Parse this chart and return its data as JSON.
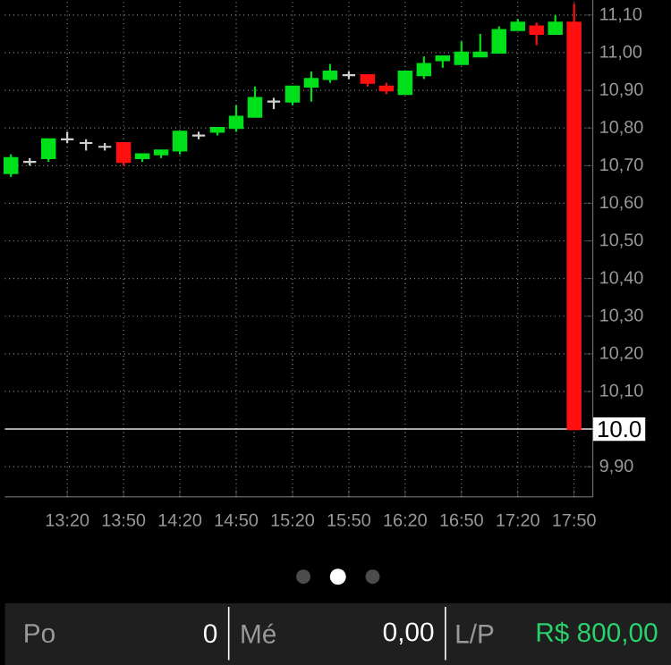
{
  "chart_data": {
    "type": "candlestick",
    "x": [
      12.8333,
      13.0,
      13.1667,
      13.3333,
      13.5,
      13.6667,
      13.8333,
      14.0,
      14.1667,
      14.3333,
      14.5,
      14.6667,
      14.8333,
      15.0,
      15.1667,
      15.3333,
      15.5,
      15.6667,
      15.8333,
      16.0,
      16.1667,
      16.3333,
      16.5,
      16.6667,
      16.8333,
      17.0,
      17.1667,
      17.3333,
      17.5,
      17.6667,
      17.8333
    ],
    "ohlc": [
      [
        10.68,
        10.73,
        10.67,
        10.72
      ],
      [
        10.71,
        10.72,
        10.7,
        10.71
      ],
      [
        10.72,
        10.77,
        10.71,
        10.77
      ],
      [
        10.77,
        10.79,
        10.76,
        10.77
      ],
      [
        10.76,
        10.77,
        10.74,
        10.76
      ],
      [
        10.75,
        10.76,
        10.74,
        10.75
      ],
      [
        10.76,
        10.76,
        10.7,
        10.71
      ],
      [
        10.72,
        10.73,
        10.71,
        10.73
      ],
      [
        10.73,
        10.74,
        10.72,
        10.74
      ],
      [
        10.74,
        10.79,
        10.73,
        10.79
      ],
      [
        10.78,
        10.79,
        10.77,
        10.78
      ],
      [
        10.79,
        10.8,
        10.78,
        10.8
      ],
      [
        10.8,
        10.86,
        10.79,
        10.83
      ],
      [
        10.83,
        10.91,
        10.83,
        10.88
      ],
      [
        10.87,
        10.88,
        10.85,
        10.87
      ],
      [
        10.87,
        10.91,
        10.86,
        10.91
      ],
      [
        10.91,
        10.95,
        10.87,
        10.93
      ],
      [
        10.93,
        10.97,
        10.92,
        10.95
      ],
      [
        10.94,
        10.95,
        10.93,
        10.94
      ],
      [
        10.94,
        10.94,
        10.91,
        10.92
      ],
      [
        10.91,
        10.92,
        10.89,
        10.9
      ],
      [
        10.89,
        10.95,
        10.89,
        10.95
      ],
      [
        10.94,
        10.99,
        10.93,
        10.97
      ],
      [
        10.98,
        10.99,
        10.96,
        10.99
      ],
      [
        10.97,
        11.03,
        10.97,
        11.0
      ],
      [
        10.99,
        11.05,
        10.99,
        11.0
      ],
      [
        11.0,
        11.07,
        11.0,
        11.06
      ],
      [
        11.06,
        11.09,
        11.06,
        11.08
      ],
      [
        11.07,
        11.08,
        11.02,
        11.05
      ],
      [
        11.05,
        11.1,
        11.05,
        11.08
      ],
      [
        11.08,
        11.13,
        10.0,
        10.0
      ]
    ],
    "colors": [
      "#00e01a",
      "#d0d0d0",
      "#00e01a",
      "#d0d0d0",
      "#d0d0d0",
      "#d0d0d0",
      "#ff1010",
      "#00e01a",
      "#00e01a",
      "#00e01a",
      "#d0d0d0",
      "#00e01a",
      "#00e01a",
      "#00e01a",
      "#d0d0d0",
      "#00e01a",
      "#00e01a",
      "#00e01a",
      "#d0d0d0",
      "#ff1010",
      "#ff1010",
      "#00e01a",
      "#00e01a",
      "#00e01a",
      "#00e01a",
      "#00e01a",
      "#00e01a",
      "#00e01a",
      "#ff1010",
      "#00e01a",
      "#ff1010"
    ],
    "xlim": [
      12.78,
      18.0
    ],
    "xticks": [
      {
        "value": 13.3333,
        "label": "13:20"
      },
      {
        "value": 13.8333,
        "label": "13:50"
      },
      {
        "value": 14.3333,
        "label": "14:20"
      },
      {
        "value": 14.8333,
        "label": "14:50"
      },
      {
        "value": 15.3333,
        "label": "15:20"
      },
      {
        "value": 15.8333,
        "label": "15:50"
      },
      {
        "value": 16.3333,
        "label": "16:20"
      },
      {
        "value": 16.8333,
        "label": "16:50"
      },
      {
        "value": 17.3333,
        "label": "17:20"
      },
      {
        "value": 17.8333,
        "label": "17:50"
      }
    ],
    "ylim": [
      9.82,
      11.14
    ],
    "yticks": [
      {
        "value": 9.9,
        "label": "9,90"
      },
      {
        "value": 10.1,
        "label": "10,10"
      },
      {
        "value": 10.2,
        "label": "10,20"
      },
      {
        "value": 10.3,
        "label": "10,30"
      },
      {
        "value": 10.4,
        "label": "10,40"
      },
      {
        "value": 10.5,
        "label": "10,50"
      },
      {
        "value": 10.6,
        "label": "10,60"
      },
      {
        "value": 10.7,
        "label": "10,70"
      },
      {
        "value": 10.8,
        "label": "10,80"
      },
      {
        "value": 10.9,
        "label": "10,90"
      },
      {
        "value": 11.0,
        "label": "11,00"
      },
      {
        "value": 11.1,
        "label": "11,10"
      }
    ],
    "grid": true,
    "ref_lines": [
      {
        "axis": "y",
        "value": 10.0,
        "label": "10.0",
        "color": "#e0e0e0"
      }
    ],
    "annotations": [
      "Po",
      "0",
      "Mé",
      "0,00",
      "L/P",
      "R$ 800,00"
    ]
  }
}
